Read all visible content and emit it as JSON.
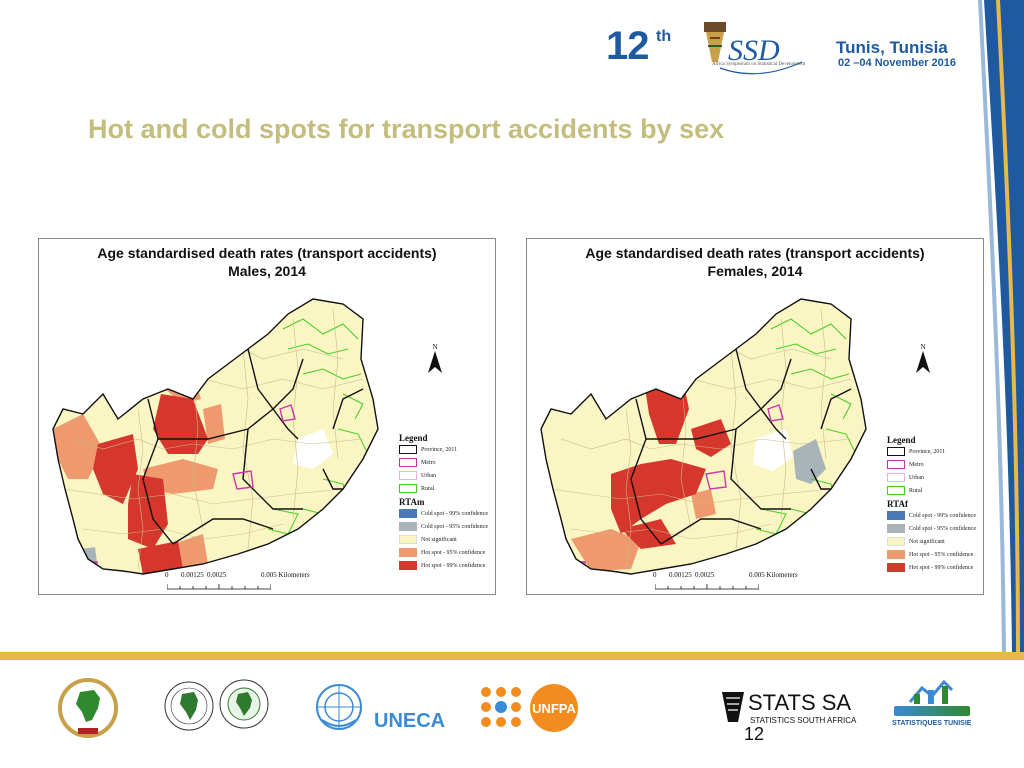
{
  "header": {
    "conference_number": "12",
    "conference_suffix": "th",
    "logo_text": "ASSD",
    "logo_subtitle": "Africa Symposium on Statistical Development",
    "location_city": "Tunis, Tunisia",
    "location_dates": "02 –04 November 2016"
  },
  "slide": {
    "title": "Hot and cold spots for transport accidents by sex",
    "page_number": "12"
  },
  "maps": [
    {
      "title_line1": "Age standardised death rates (transport accidents)",
      "title_line2": "Males, 2014",
      "legend_title": "Legend",
      "legend_items": [
        "Province, 2011",
        "Metro",
        "Urban",
        "Rural"
      ],
      "rta_label": "RTAm",
      "classes": [
        "Cold spot - 99% confidence",
        "Cold spot - 95% confidence",
        "Not significant",
        "Hot spot - 95% confidence",
        "Hot spot - 99% confidence"
      ],
      "north_label": "N",
      "scale_ticks": [
        "0",
        "0.00125",
        "0.0025",
        "0.005 Kilometers"
      ]
    },
    {
      "title_line1": "Age standardised death rates (transport accidents)",
      "title_line2": "Females, 2014",
      "legend_title": "Legend",
      "legend_items": [
        "Province, 2011",
        "Metro",
        "Urban",
        "Rural"
      ],
      "rta_label": "RTAf",
      "classes": [
        "Cold spot - 99% confidence",
        "Cold spot - 95% confidence",
        "Not significant",
        "Hot spot - 95% confidence",
        "Hot spot - 99% confidence"
      ],
      "north_label": "N",
      "scale_ticks": [
        "0",
        "0.00125",
        "0.0025",
        "0.005 Kilometers"
      ]
    }
  ],
  "colors": {
    "province_outline": "#111111",
    "metro": "#cc33aa",
    "urban": "#f3f0c0",
    "rural": "#44cc22",
    "cold_99": "#4a78b8",
    "cold_95": "#a8b4b8",
    "not_significant": "#faf6c4",
    "hot_95": "#ee9a6e",
    "hot_99": "#d6372c",
    "title_color": "#c4bd7e",
    "brand_blue": "#1f5aa0"
  },
  "footer": {
    "logos": [
      "african-union-logo",
      "afdb-logo",
      "african-development-logo",
      "uneca-logo",
      "unfpa-logo",
      "stats-sa-logo",
      "statistiques-tunisie-logo"
    ],
    "uneca_text": "UNECA",
    "unfpa_text": "UNFPA",
    "statssa_text": "STATS SA",
    "statssa_sub": "STATISTICS SOUTH AFRICA",
    "tunisie_text": "STATISTIQUES TUNISIE"
  }
}
